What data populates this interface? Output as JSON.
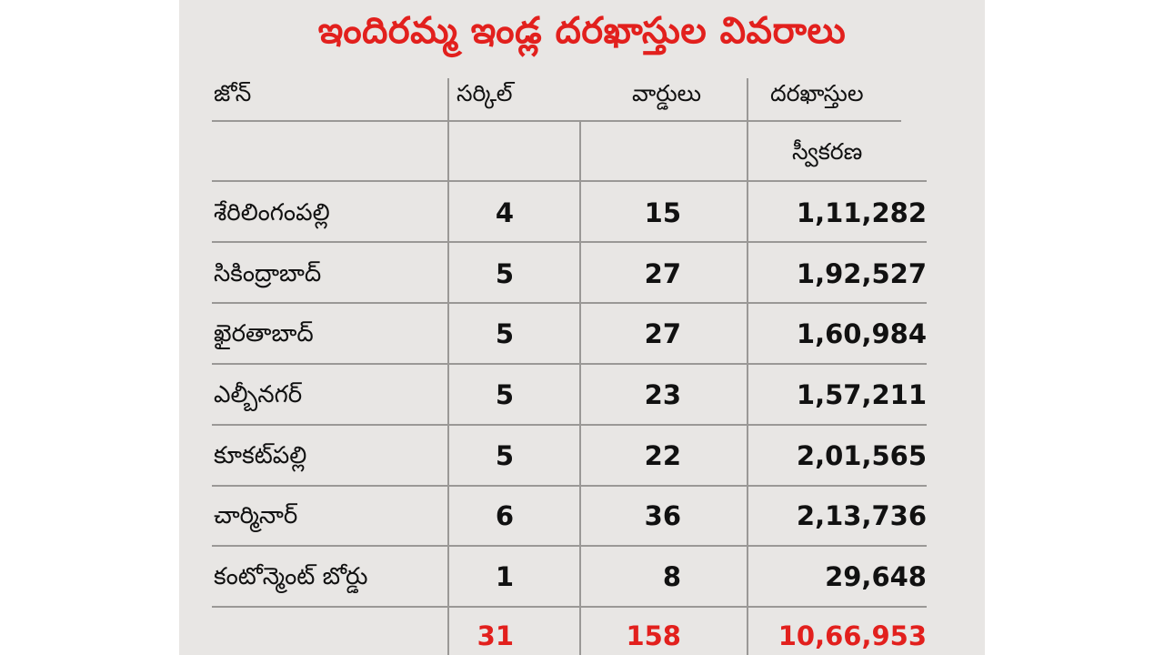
{
  "title": "ఇందిరమ్మ ఇండ్ల దరఖాస్తుల వివరాలు",
  "headers": {
    "zone": "జోన్",
    "circle": "సర్కిల్",
    "wards": "వార్డులు",
    "applications_line1": "దరఖాస్తుల",
    "applications_line2": "స్వీకరణ"
  },
  "rows": [
    {
      "zone": "శేరిలింగంపల్లి",
      "circles": "4",
      "wards": "15",
      "applications": "1,11,282"
    },
    {
      "zone": "సికింద్రాబాద్",
      "circles": "5",
      "wards": "27",
      "applications": "1,92,527"
    },
    {
      "zone": "ఖైరతాబాద్",
      "circles": "5",
      "wards": "27",
      "applications": "1,60,984"
    },
    {
      "zone": "ఎల్బీనగర్",
      "circles": "5",
      "wards": "23",
      "applications": "1,57,211"
    },
    {
      "zone": "కూకట్‌పల్లి",
      "circles": "5",
      "wards": "22",
      "applications": "2,01,565"
    },
    {
      "zone": "చార్మినార్",
      "circles": "6",
      "wards": "36",
      "applications": "2,13,736"
    },
    {
      "zone": "కంటోన్మెంట్ బోర్డు",
      "circles": "1",
      "wards": "8",
      "applications": "29,648"
    }
  ],
  "totals": {
    "circles": "31",
    "wards": "158",
    "applications": "10,66,953"
  },
  "colors": {
    "title": "#e2201d",
    "totals": "#e2201d",
    "background": "#e8e6e4"
  }
}
